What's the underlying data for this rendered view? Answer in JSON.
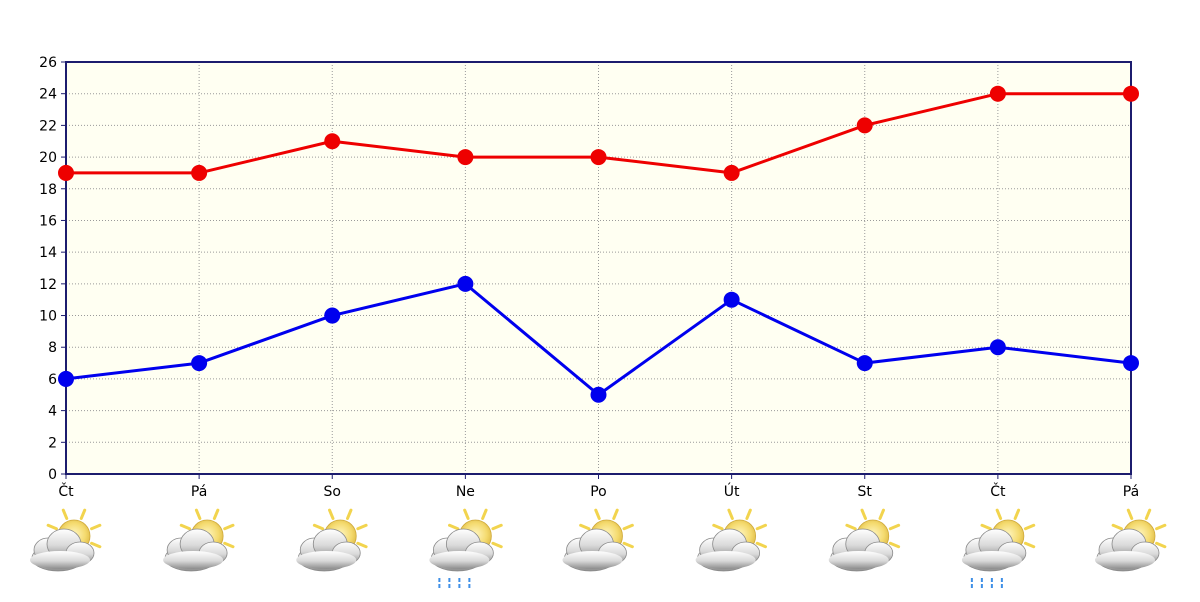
{
  "chart_data": {
    "type": "line",
    "categories": [
      "Čt",
      "Pá",
      "So",
      "Ne",
      "Po",
      "Út",
      "St",
      "Čt",
      "Pá"
    ],
    "ylim": [
      0,
      26
    ],
    "yticks": [
      0,
      2,
      4,
      6,
      8,
      10,
      12,
      14,
      16,
      18,
      20,
      22,
      24,
      26
    ],
    "grid": true,
    "series": [
      {
        "color": "#ee0000",
        "values": [
          19,
          19,
          21,
          20,
          20,
          19,
          22,
          24,
          24
        ]
      },
      {
        "color": "#0000ee",
        "values": [
          6,
          7,
          10,
          12,
          5,
          11,
          7,
          8,
          7
        ]
      }
    ],
    "weather_icons": [
      "sun-behind-cloud",
      "sun-behind-cloud",
      "sun-behind-cloud",
      "rain-cloud-sun",
      "sun-behind-cloud",
      "sun-behind-cloud",
      "sun-behind-cloud",
      "rain-cloud-sun",
      "sun-behind-cloud"
    ],
    "colors": {
      "plot_background": "#fffff2",
      "axis": "#1c1c6e",
      "grid": "#9a9a9a"
    }
  }
}
